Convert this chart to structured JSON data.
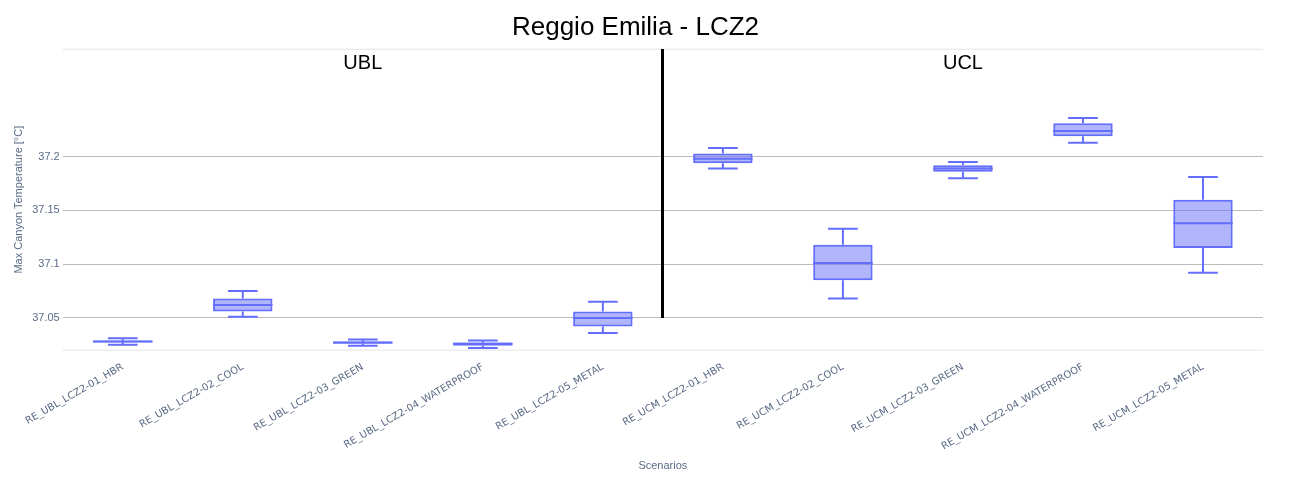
{
  "chart_data": {
    "type": "box",
    "title": "Reggio Emilia - LCZ2",
    "xlabel": "Scenarios",
    "ylabel": "Max Canyon Temperature [°C]",
    "annotations": [
      "UBL",
      "UCL"
    ],
    "categories": [
      "RE_UBL_LCZ2-01_HBR",
      "RE_UBL_LCZ2-02_COOL",
      "RE_UBL_LCZ2-03_GREEN",
      "RE_UBL_LCZ2-04_WATERPROOF",
      "RE_UBL_LCZ2-05_METAL",
      "RE_UCM_LCZ2-01_HBR",
      "RE_UCM_LCZ2-02_COOL",
      "RE_UCM_LCZ2-03_GREEN",
      "RE_UCM_LCZ2-04_WATERPROOF",
      "RE_UCM_LCZ2-05_METAL"
    ],
    "color": "#636efa",
    "boxes": [
      {
        "low": 37.025,
        "q1": 37.027,
        "median": 37.028,
        "q3": 37.029,
        "high": 37.031
      },
      {
        "low": 37.051,
        "q1": 37.056,
        "median": 37.062,
        "q3": 37.068,
        "high": 37.075
      },
      {
        "low": 37.024,
        "q1": 37.026,
        "median": 37.027,
        "q3": 37.028,
        "high": 37.03
      },
      {
        "low": 37.022,
        "q1": 37.024,
        "median": 37.026,
        "q3": 37.027,
        "high": 37.029
      },
      {
        "low": 37.036,
        "q1": 37.042,
        "median": 37.05,
        "q3": 37.056,
        "high": 37.065
      },
      {
        "low": 37.189,
        "q1": 37.194,
        "median": 37.198,
        "q3": 37.203,
        "high": 37.208
      },
      {
        "low": 37.068,
        "q1": 37.085,
        "median": 37.101,
        "q3": 37.118,
        "high": 37.133
      },
      {
        "low": 37.18,
        "q1": 37.186,
        "median": 37.189,
        "q3": 37.192,
        "high": 37.195
      },
      {
        "low": 37.213,
        "q1": 37.219,
        "median": 37.224,
        "q3": 37.231,
        "high": 37.236
      },
      {
        "low": 37.092,
        "q1": 37.115,
        "median": 37.138,
        "q3": 37.16,
        "high": 37.181
      }
    ],
    "ylim": [
      37.02,
      37.3
    ],
    "yticks": [
      37.05,
      37.1,
      37.15,
      37.2
    ],
    "grid": "y"
  }
}
